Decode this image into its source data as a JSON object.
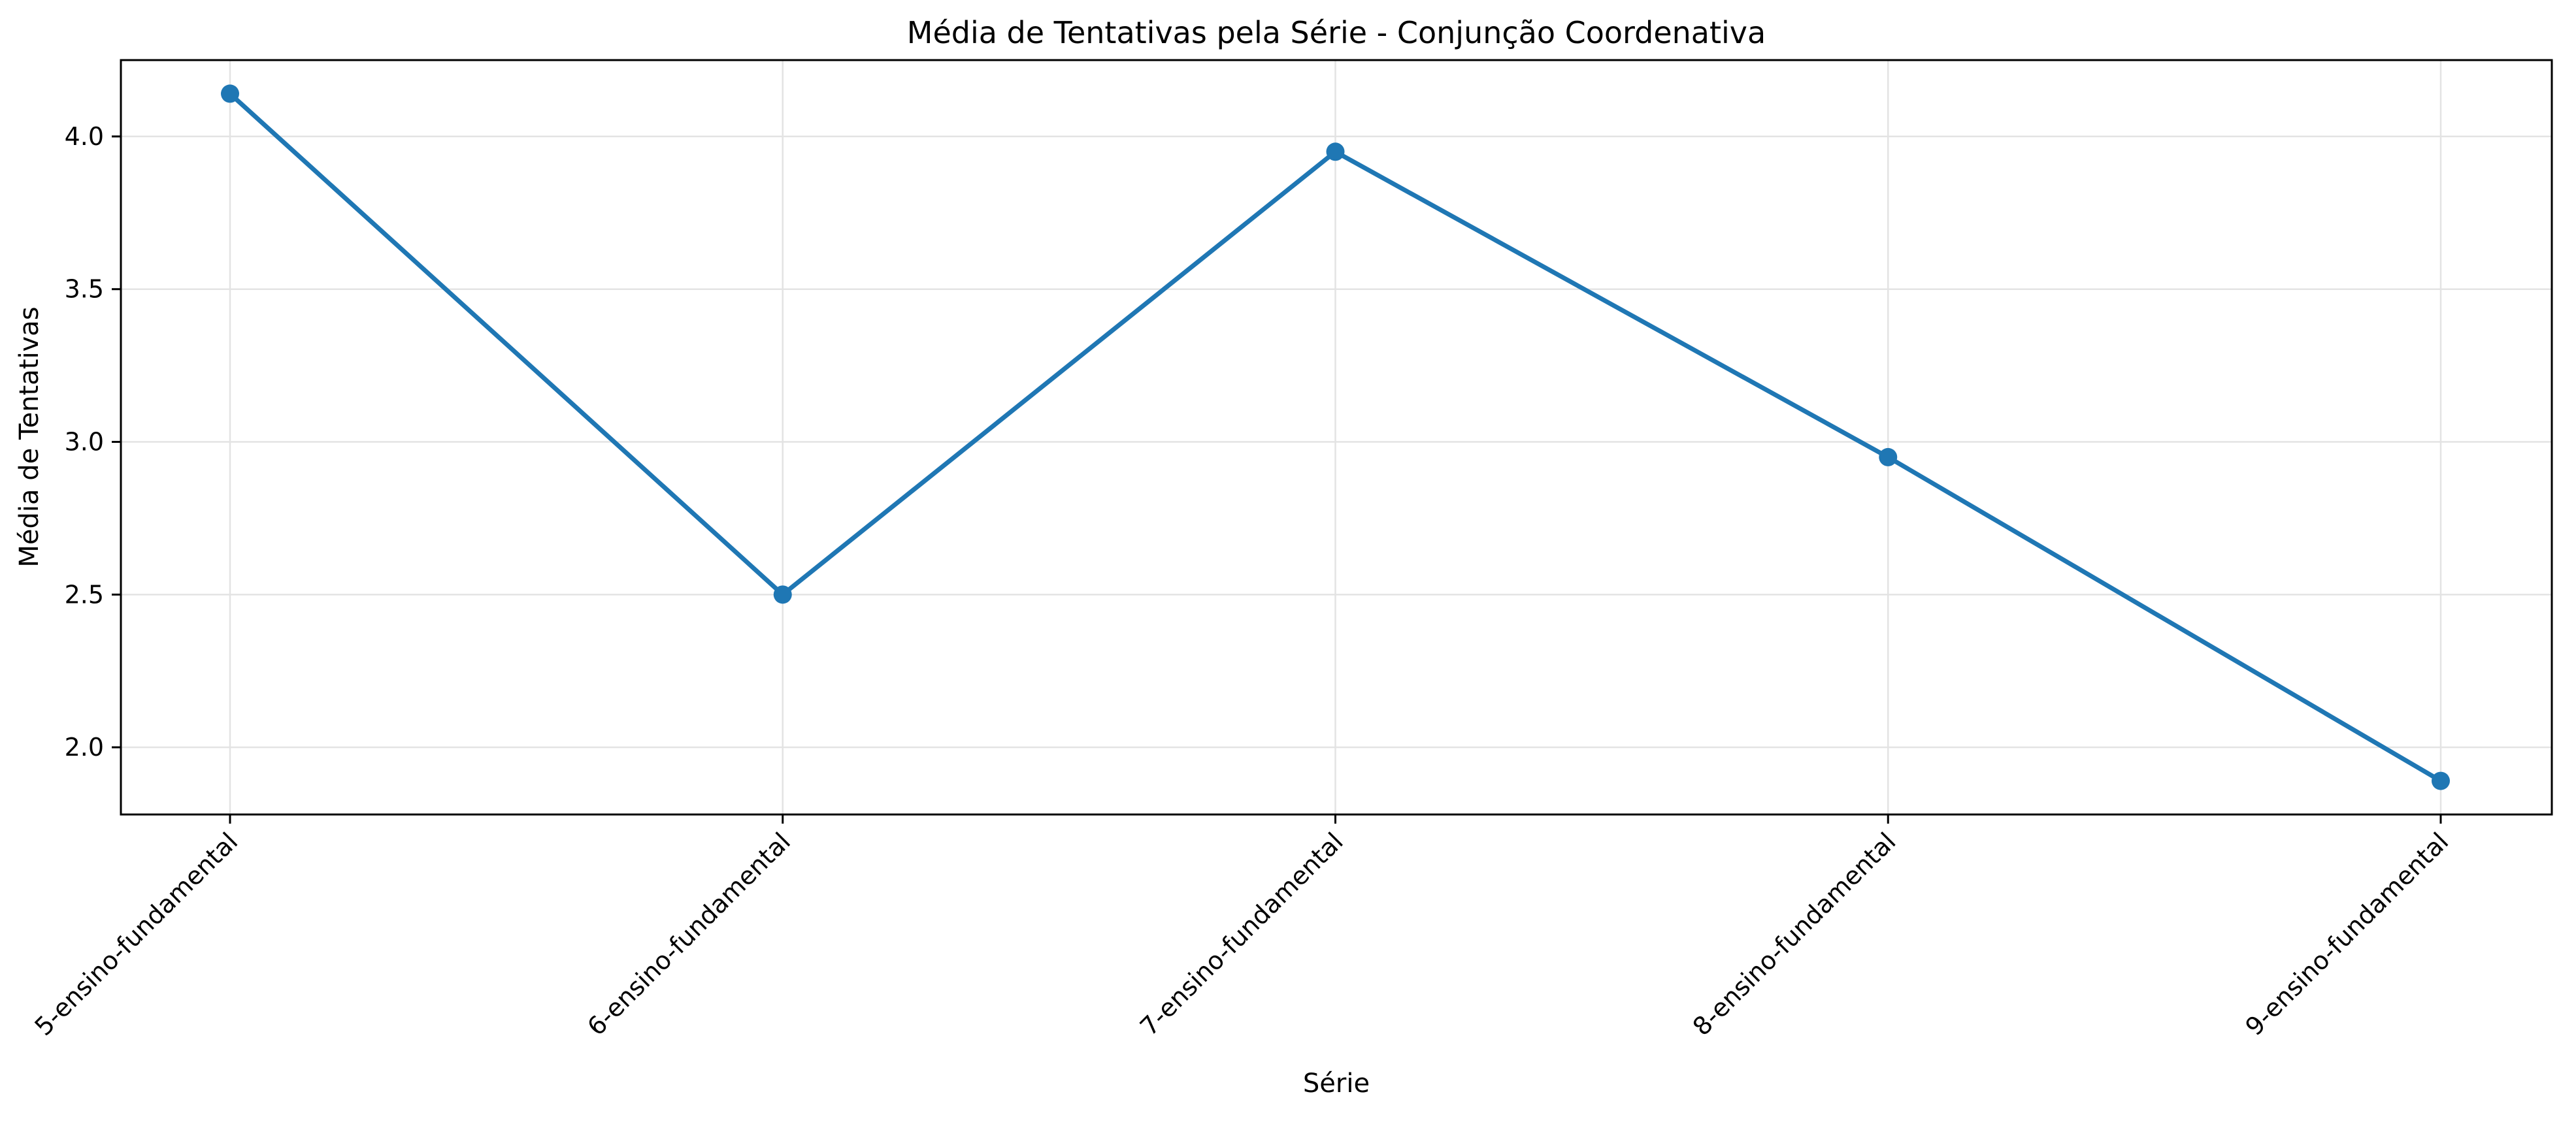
{
  "chart_data": {
    "type": "line",
    "title": "Média de Tentativas pela Série - Conjunção Coordenativa",
    "xlabel": "Série",
    "ylabel": "Média de Tentativas",
    "categories": [
      "5-ensino-fundamental",
      "6-ensino-fundamental",
      "7-ensino-fundamental",
      "8-ensino-fundamental",
      "9-ensino-fundamental"
    ],
    "series": [
      {
        "name": "Média de Tentativas",
        "values": [
          4.14,
          2.5,
          3.95,
          2.95,
          1.89
        ],
        "color": "#1f77b4"
      }
    ],
    "ylim": [
      1.78,
      4.25
    ],
    "yticks": [
      2.0,
      2.5,
      3.0,
      3.5,
      4.0
    ],
    "ytick_labels": [
      "2.0",
      "2.5",
      "3.0",
      "3.5",
      "4.0"
    ],
    "grid": true,
    "marker": "circle"
  }
}
